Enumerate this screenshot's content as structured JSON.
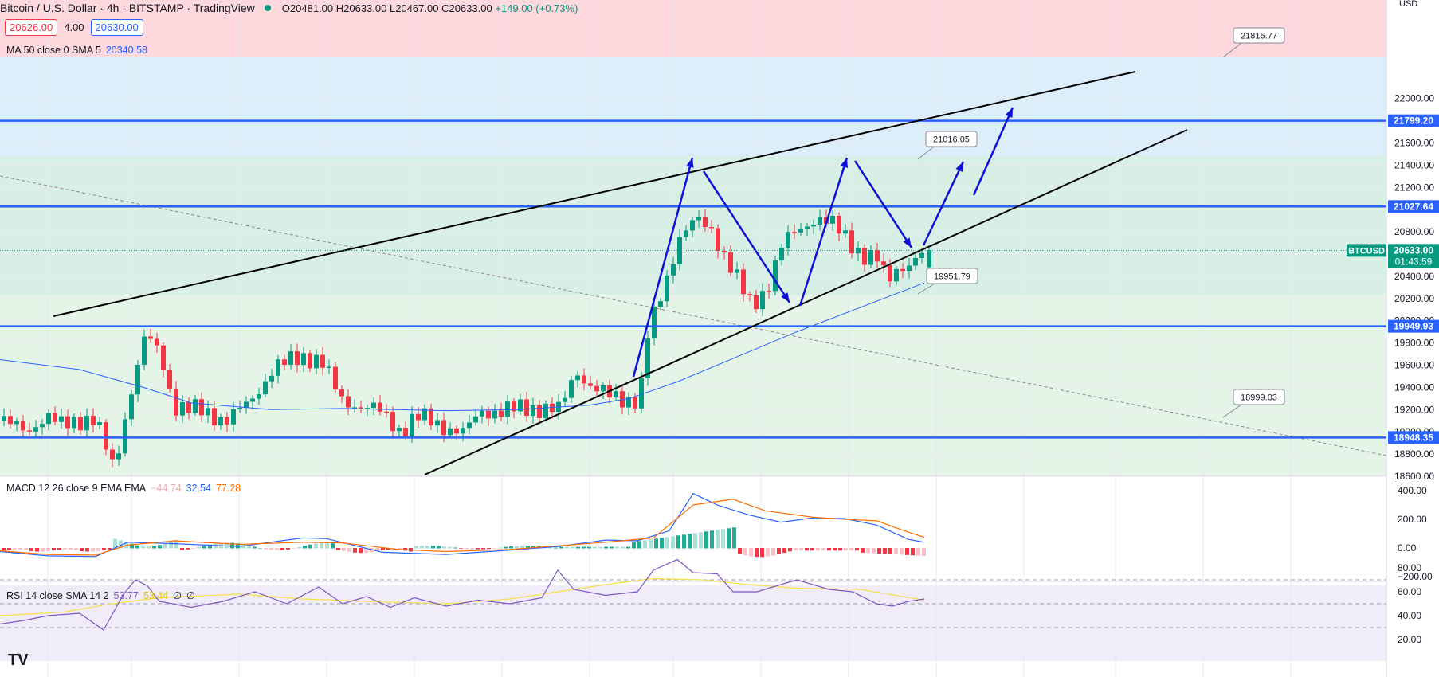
{
  "header": {
    "title": "Bitcoin / U.S. Dollar · 4h · BITSTAMP · TradingView",
    "ohlc": {
      "o": "O20481.00",
      "h": "H20633.00",
      "l": "L20467.00",
      "c": "C20633.00",
      "chg": "+149.00 (+0.73%)"
    }
  },
  "quote": {
    "bid": "20626.00",
    "spread": "4.00",
    "ask": "20630.00"
  },
  "ma_legend": {
    "label": "MA 50 close 0 SMA 5",
    "value": "20340.58"
  },
  "macd_legend": {
    "label": "MACD 12 26 close 9 EMA EMA",
    "v1": "−44.74",
    "v2": "32.54",
    "v3": "77.28"
  },
  "rsi_legend": {
    "label": "RSI 14 close SMA 14 2",
    "v1": "53.77",
    "v2": "53.44",
    "v3": "∅",
    "v4": "∅"
  },
  "colors": {
    "up": "#089981",
    "down": "#f23645",
    "level_line": "#2962ff",
    "trend_line": "#000000",
    "arrow": "#0d10d6",
    "ma": "#2962ff",
    "macd": "#2962ff",
    "signal": "#ff6d00",
    "rsi": "#7e57c2",
    "rsi_ma": "#f7e04b",
    "resistance_zone": "#fdd8dc",
    "blue_zone": "#ddeefb",
    "teal_zone": "#d8efe5",
    "green_zone": "#e4f4e6"
  },
  "price_axis": {
    "currency": "USD",
    "ticks": [
      "22000.00",
      "21800.00",
      "21600.00",
      "21400.00",
      "21200.00",
      "21000.00",
      "20800.00",
      "20600.00",
      "20400.00",
      "20200.00",
      "20000.00",
      "19800.00",
      "19600.00",
      "19400.00",
      "19200.00",
      "19000.00",
      "18800.00",
      "18600.00"
    ],
    "level_labels": [
      "21799.20",
      "21027.64",
      "19949.93",
      "18948.35"
    ],
    "current_symbol": "BTCUSD",
    "current_price": "20633.00",
    "countdown": "01:43:59"
  },
  "macd_axis": {
    "ticks": [
      "400.00",
      "200.00",
      "0.00",
      "−200.00"
    ]
  },
  "rsi_axis": {
    "ticks": [
      "80.00",
      "60.00",
      "40.00",
      "20.00"
    ]
  },
  "callouts": [
    "21816.77",
    "21016.05",
    "19951.79",
    "18999.03"
  ],
  "logo": "TV"
}
